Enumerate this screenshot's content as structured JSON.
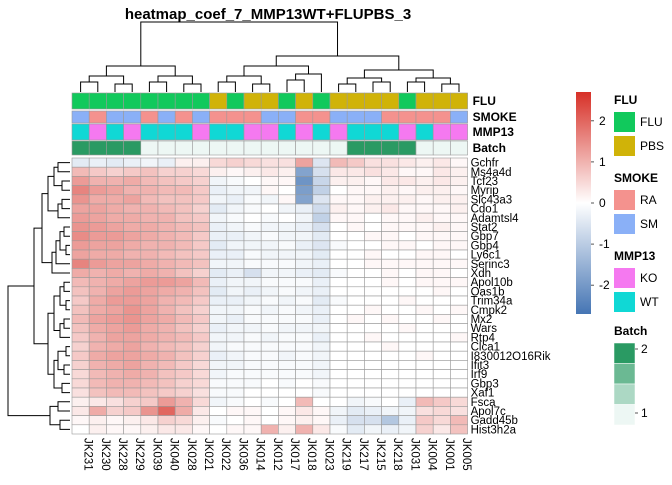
{
  "chart_data": {
    "type": "heatmap",
    "title": "heatmap_coef_7_MMP13WT+FLUPBS_3",
    "color_scale": {
      "min": -2.7,
      "max": 2.7,
      "ticks": [
        2,
        1,
        0,
        -1,
        -2
      ],
      "low_color": "#4575B4",
      "mid_color": "#FFFFFF",
      "high_color": "#D73027"
    },
    "columns": [
      "JK231",
      "JK230",
      "JK228",
      "JK229",
      "JK039",
      "JK040",
      "JK028",
      "JK021",
      "JK022",
      "JK036",
      "JK014",
      "JK012",
      "JK017",
      "JK018",
      "JK023",
      "JK219",
      "JK217",
      "JK215",
      "JK218",
      "JK031",
      "JK004",
      "JK001",
      "JK005"
    ],
    "rows": [
      "Gchfr",
      "Ms4a4d",
      "Tcf23",
      "Myrip",
      "Slc43a3",
      "Cdo1",
      "Adamtsl4",
      "Stat2",
      "Gbp7",
      "Gbp4",
      "Ly6c1",
      "Serinc3",
      "Xdh",
      "Apol10b",
      "Oas1b",
      "Trim34a",
      "Cmpk2",
      "Mx2",
      "Wars",
      "Rtp4",
      "Clca1",
      "I830012O16Rik",
      "Ifit3",
      "Irf9",
      "Gbp3",
      "Xaf1",
      "Fsca",
      "Apol7c",
      "Gadd45b",
      "Hist3h2a"
    ],
    "values": [
      [
        -0.4,
        -0.3,
        -0.4,
        -0.3,
        -0.2,
        -0.3,
        0.2,
        0.2,
        0.5,
        0.6,
        0.5,
        0.4,
        0.4,
        1.2,
        -0.5,
        0.9,
        0.7,
        0.4,
        0.4,
        0.3,
        0.2,
        0.3,
        0.1
      ],
      [
        0.9,
        0.7,
        0.6,
        0.7,
        0.8,
        0.6,
        0.6,
        0.5,
        0.2,
        0.1,
        0.2,
        0.3,
        0.2,
        -1.8,
        -0.6,
        0.3,
        0.3,
        0.4,
        0.3,
        0.1,
        0.1,
        0.3,
        0.2
      ],
      [
        1.3,
        1.0,
        1.0,
        1.1,
        0.9,
        0.8,
        0.7,
        0.6,
        -0.2,
        -0.1,
        0.0,
        0.1,
        0.1,
        -2.1,
        -0.8,
        0.2,
        0.2,
        0.1,
        0.3,
        0.3,
        0.2,
        0.3,
        0.2
      ],
      [
        1.6,
        1.3,
        1.2,
        1.0,
        1.0,
        0.9,
        0.9,
        0.7,
        -0.3,
        -0.2,
        -0.2,
        0.1,
        0.0,
        -1.9,
        -0.9,
        0.0,
        0.1,
        0.1,
        0.2,
        0.1,
        0.2,
        0.2,
        0.1
      ],
      [
        1.4,
        1.1,
        1.1,
        1.2,
        0.9,
        0.8,
        0.8,
        0.7,
        -0.2,
        -0.3,
        -0.1,
        -0.2,
        0.1,
        -1.8,
        -0.5,
        0.1,
        0.1,
        0.2,
        0.2,
        0.2,
        0.1,
        0.2,
        0.2
      ],
      [
        1.2,
        1.2,
        1.1,
        1.0,
        1.0,
        0.9,
        0.8,
        0.6,
        -0.4,
        -0.2,
        -0.1,
        0.0,
        -0.2,
        -0.3,
        -0.7,
        0.2,
        0.1,
        0.2,
        0.3,
        0.1,
        0.1,
        0.1,
        0.2
      ],
      [
        1.3,
        1.2,
        1.1,
        1.1,
        1.0,
        1.0,
        0.8,
        0.7,
        -0.2,
        -0.1,
        0.0,
        -0.1,
        0.0,
        -0.2,
        -0.9,
        0.1,
        0.1,
        0.0,
        0.1,
        0.1,
        0.2,
        0.1,
        0.1
      ],
      [
        1.4,
        1.3,
        1.2,
        1.1,
        1.1,
        1.0,
        0.9,
        0.8,
        -0.3,
        -0.2,
        -0.1,
        -0.2,
        -0.2,
        -0.3,
        -0.6,
        0.0,
        0.1,
        0.0,
        0.1,
        0.1,
        0.1,
        0.2,
        0.1
      ],
      [
        1.5,
        1.3,
        1.3,
        1.2,
        1.1,
        1.0,
        0.9,
        0.7,
        -0.3,
        -0.3,
        -0.2,
        -0.1,
        -0.2,
        -0.2,
        -0.4,
        0.0,
        0.0,
        0.1,
        0.1,
        0.0,
        0.1,
        0.1,
        0.1
      ],
      [
        1.3,
        1.2,
        1.2,
        1.1,
        1.0,
        1.0,
        0.9,
        0.7,
        -0.4,
        -0.2,
        -0.2,
        -0.2,
        -0.1,
        -0.3,
        -0.5,
        -0.1,
        0.0,
        0.0,
        0.1,
        0.1,
        0.0,
        0.1,
        0.1
      ],
      [
        1.2,
        1.1,
        1.1,
        1.0,
        1.0,
        0.9,
        0.8,
        0.7,
        -0.3,
        -0.3,
        -0.1,
        -0.2,
        -0.2,
        -0.2,
        -0.4,
        0.0,
        0.0,
        0.1,
        0.0,
        0.0,
        0.1,
        0.1,
        0.0
      ],
      [
        1.6,
        1.3,
        1.2,
        1.2,
        1.1,
        1.0,
        0.9,
        0.8,
        -0.2,
        -0.2,
        -0.1,
        -0.1,
        -0.1,
        -0.2,
        -0.3,
        0.0,
        0.0,
        0.1,
        0.1,
        0.1,
        0.1,
        0.1,
        0.1
      ],
      [
        1.1,
        1.0,
        1.1,
        1.0,
        1.1,
        1.0,
        0.8,
        0.6,
        -0.4,
        -0.3,
        -0.6,
        -0.2,
        -0.2,
        -0.3,
        -0.4,
        -0.1,
        0.0,
        0.0,
        0.1,
        0.0,
        0.1,
        0.1,
        0.0
      ],
      [
        0.9,
        1.0,
        1.1,
        1.2,
        1.3,
        1.3,
        1.2,
        0.9,
        -0.3,
        -0.2,
        -0.2,
        -0.1,
        -0.1,
        -0.1,
        -0.3,
        0.0,
        0.0,
        0.0,
        0.1,
        0.0,
        0.1,
        0.1,
        0.1
      ],
      [
        0.8,
        1.0,
        1.2,
        1.3,
        1.2,
        1.1,
        1.0,
        0.8,
        -0.4,
        -0.2,
        -0.3,
        -0.2,
        -0.1,
        -0.2,
        -0.3,
        0.0,
        0.0,
        0.0,
        0.0,
        0.0,
        0.0,
        0.1,
        0.0
      ],
      [
        0.7,
        1.1,
        1.3,
        1.3,
        1.2,
        1.0,
        0.9,
        0.7,
        -0.3,
        -0.3,
        -0.2,
        -0.1,
        -0.2,
        -0.1,
        -0.4,
        -0.1,
        0.0,
        0.0,
        0.0,
        0.1,
        0.0,
        0.0,
        0.0
      ],
      [
        0.8,
        1.1,
        1.2,
        1.4,
        1.2,
        1.0,
        0.8,
        0.6,
        -0.2,
        -0.2,
        -0.1,
        -0.2,
        -0.1,
        -0.2,
        -0.3,
        0.0,
        0.0,
        0.1,
        0.0,
        0.0,
        0.1,
        0.0,
        0.1
      ],
      [
        0.9,
        1.2,
        1.3,
        1.4,
        1.2,
        1.1,
        0.9,
        0.7,
        -0.2,
        -0.3,
        -0.1,
        -0.1,
        -0.1,
        -0.1,
        -0.3,
        0.0,
        0.1,
        0.0,
        0.1,
        0.0,
        0.0,
        0.1,
        0.0
      ],
      [
        0.8,
        1.1,
        1.2,
        1.3,
        1.1,
        1.0,
        0.8,
        0.6,
        -0.3,
        -0.2,
        -0.2,
        -0.1,
        -0.2,
        -0.2,
        -0.2,
        0.0,
        0.0,
        0.0,
        0.0,
        0.1,
        0.0,
        0.0,
        0.0
      ],
      [
        0.7,
        1.0,
        1.2,
        1.2,
        1.1,
        1.0,
        0.9,
        0.7,
        -0.2,
        -0.2,
        -0.1,
        -0.2,
        -0.1,
        -0.1,
        -0.3,
        0.0,
        0.0,
        0.1,
        0.0,
        0.0,
        0.0,
        0.0,
        0.1
      ],
      [
        0.6,
        1.0,
        1.1,
        1.2,
        1.0,
        0.9,
        0.8,
        0.6,
        -0.2,
        -0.1,
        -0.1,
        -0.1,
        -0.1,
        -0.1,
        -0.2,
        0.0,
        0.0,
        0.0,
        0.1,
        0.0,
        0.0,
        0.0,
        0.0
      ],
      [
        0.7,
        1.1,
        1.2,
        1.2,
        1.1,
        1.0,
        0.8,
        0.6,
        -0.3,
        -0.2,
        -0.1,
        -0.1,
        -0.2,
        -0.1,
        -0.2,
        0.0,
        0.0,
        0.0,
        0.0,
        0.0,
        0.1,
        0.0,
        0.0
      ],
      [
        0.6,
        1.0,
        1.1,
        1.2,
        1.0,
        0.9,
        0.7,
        0.5,
        -0.2,
        -0.2,
        -0.1,
        -0.1,
        -0.1,
        -0.1,
        -0.2,
        0.0,
        0.0,
        0.0,
        0.0,
        0.0,
        0.0,
        0.0,
        0.0
      ],
      [
        0.5,
        0.9,
        1.0,
        1.1,
        1.0,
        0.8,
        0.7,
        0.5,
        -0.2,
        -0.1,
        -0.1,
        -0.1,
        -0.1,
        -0.1,
        -0.2,
        0.0,
        0.0,
        0.0,
        0.0,
        0.0,
        0.0,
        0.0,
        0.0
      ],
      [
        0.5,
        0.9,
        1.0,
        1.0,
        0.9,
        0.8,
        0.6,
        0.5,
        -0.1,
        -0.1,
        -0.1,
        0.0,
        -0.1,
        0.0,
        -0.1,
        0.0,
        0.0,
        0.0,
        0.0,
        0.0,
        0.0,
        0.0,
        0.0
      ],
      [
        0.4,
        0.8,
        0.9,
        0.9,
        0.8,
        0.7,
        0.6,
        0.4,
        -0.1,
        -0.1,
        0.0,
        0.0,
        0.0,
        0.0,
        -0.1,
        0.0,
        0.0,
        0.0,
        0.0,
        0.0,
        0.0,
        0.0,
        0.0
      ],
      [
        0.2,
        0.3,
        0.4,
        0.6,
        0.7,
        1.3,
        1.0,
        0.5,
        -0.2,
        -0.1,
        0.0,
        -0.1,
        0.0,
        0.9,
        0.0,
        0.0,
        -0.2,
        -0.1,
        0.0,
        -0.3,
        0.9,
        0.7,
        0.5
      ],
      [
        0.3,
        1.1,
        0.6,
        0.7,
        1.4,
        2.0,
        1.1,
        0.3,
        0.0,
        0.1,
        0.1,
        0.0,
        0.1,
        0.3,
        0.1,
        -0.2,
        -0.4,
        -0.3,
        -0.2,
        -0.2,
        0.4,
        0.5,
        0.4
      ],
      [
        0.1,
        0.2,
        0.1,
        0.2,
        0.3,
        0.6,
        0.5,
        0.2,
        -0.1,
        0.0,
        0.1,
        0.0,
        0.1,
        0.2,
        0.1,
        -0.3,
        -0.6,
        -0.6,
        -1.1,
        -0.3,
        0.7,
        0.5,
        0.9
      ],
      [
        0.0,
        0.2,
        0.1,
        0.1,
        0.2,
        0.3,
        0.3,
        0.1,
        0.0,
        0.1,
        0.1,
        1.0,
        0.2,
        1.0,
        0.3,
        -0.1,
        -0.4,
        -0.2,
        -0.3,
        -0.2,
        0.6,
        0.3,
        0.8
      ]
    ],
    "annotations": {
      "order": [
        "FLU",
        "SMOKE",
        "MMP13",
        "Batch"
      ],
      "FLU": {
        "title": "FLU",
        "levels": [
          "FLU",
          "PBS"
        ],
        "colors": {
          "FLU": "#11C95C",
          "PBS": "#D0B308"
        },
        "values": [
          "FLU",
          "FLU",
          "FLU",
          "FLU",
          "FLU",
          "FLU",
          "FLU",
          "FLU",
          "PBS",
          "FLU",
          "PBS",
          "PBS",
          "FLU",
          "PBS",
          "FLU",
          "PBS",
          "PBS",
          "PBS",
          "PBS",
          "FLU",
          "PBS",
          "PBS",
          "PBS"
        ]
      },
      "SMOKE": {
        "title": "SMOKE",
        "levels": [
          "RA",
          "SM"
        ],
        "colors": {
          "RA": "#F4928E",
          "SM": "#8AB0F7"
        },
        "values": [
          "SM",
          "RA",
          "SM",
          "SM",
          "RA",
          "SM",
          "RA",
          "SM",
          "RA",
          "RA",
          "RA",
          "SM",
          "SM",
          "RA",
          "RA",
          "SM",
          "SM",
          "SM",
          "RA",
          "RA",
          "RA",
          "RA",
          "SM"
        ]
      },
      "MMP13": {
        "title": "MMP13",
        "levels": [
          "KO",
          "WT"
        ],
        "colors": {
          "KO": "#F579F0",
          "WT": "#10D8D5"
        },
        "values": [
          "WT",
          "KO",
          "WT",
          "KO",
          "WT",
          "WT",
          "WT",
          "KO",
          "WT",
          "WT",
          "KO",
          "KO",
          "WT",
          "KO",
          "WT",
          "KO",
          "WT",
          "WT",
          "WT",
          "KO",
          "WT",
          "KO",
          "KO"
        ]
      },
      "Batch": {
        "title": "Batch",
        "levels": [
          "2",
          "1"
        ],
        "colors": {
          "1": "#EDF7F4",
          "2": "#2A9A63"
        },
        "legend_ticks": [
          "2",
          "1"
        ],
        "values": [
          "2",
          "2",
          "2",
          "2",
          "1",
          "1",
          "1",
          "1",
          "1",
          "1",
          "1",
          "1",
          "1",
          "1",
          "1",
          "1",
          "2",
          "2",
          "2",
          "2",
          "1",
          "1",
          "1"
        ]
      }
    },
    "column_dendrogram": true,
    "row_dendrogram": true,
    "grid": true
  }
}
